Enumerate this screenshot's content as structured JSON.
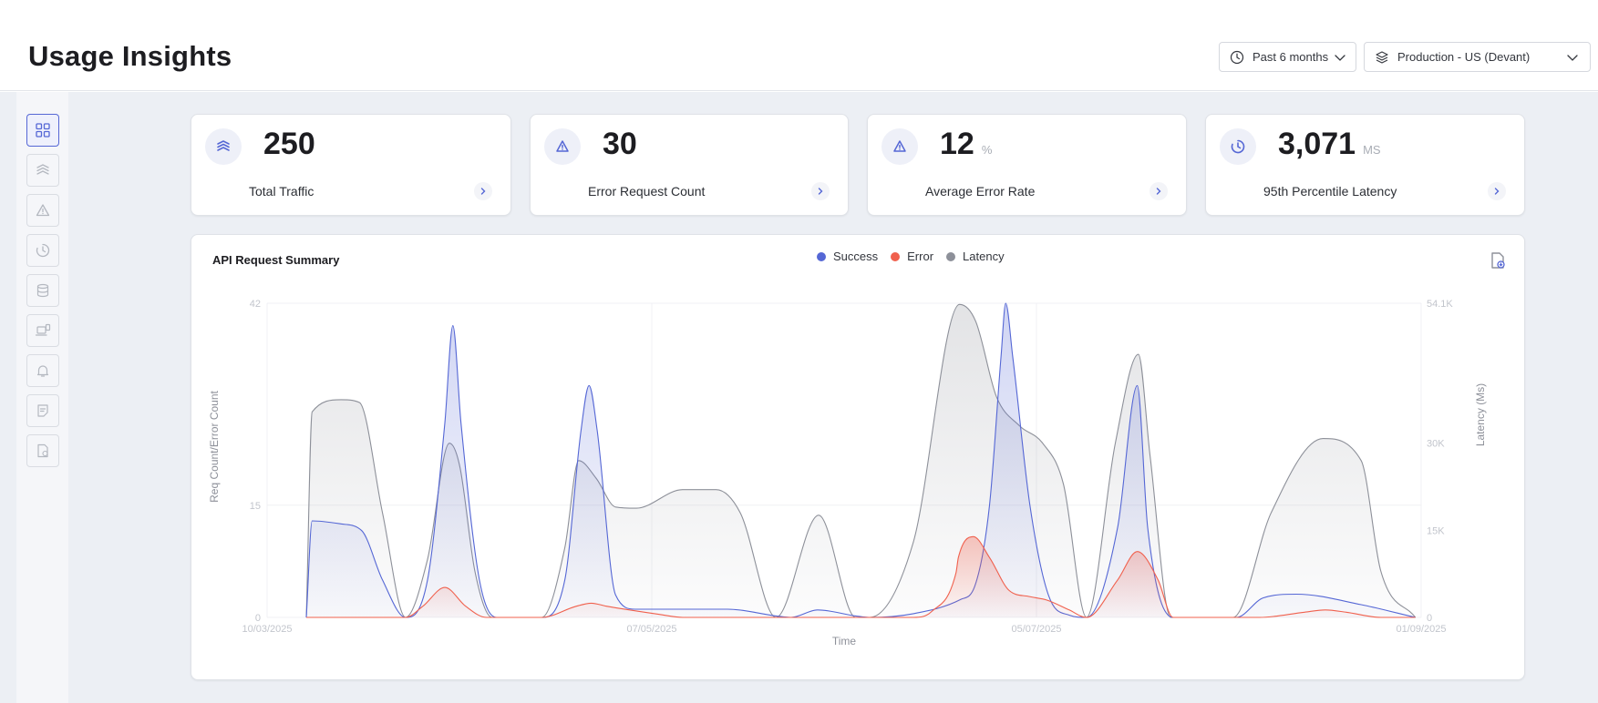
{
  "header": {
    "title": "Usage Insights",
    "time_range": "Past 6 months",
    "environment": "Production - US (Devant)"
  },
  "sidebar": {
    "items": [
      {
        "name": "overview",
        "icon": "grid-icon",
        "active": true
      },
      {
        "name": "traffic",
        "icon": "layers-icon",
        "active": false
      },
      {
        "name": "errors",
        "icon": "warning-icon",
        "active": false
      },
      {
        "name": "latency",
        "icon": "pie-clock-icon",
        "active": false
      },
      {
        "name": "database",
        "icon": "database-icon",
        "active": false
      },
      {
        "name": "devices",
        "icon": "devices-icon",
        "active": false
      },
      {
        "name": "alerts",
        "icon": "bell-icon",
        "active": false
      },
      {
        "name": "reports",
        "icon": "document-icon",
        "active": false
      },
      {
        "name": "export",
        "icon": "export-file-icon",
        "active": false
      }
    ]
  },
  "cards": [
    {
      "value": "250",
      "unit": "",
      "label": "Total Traffic",
      "icon": "layers-icon"
    },
    {
      "value": "30",
      "unit": "",
      "label": "Error Request Count",
      "icon": "warning-icon"
    },
    {
      "value": "12",
      "unit": "%",
      "label": "Average Error Rate",
      "icon": "warning-icon"
    },
    {
      "value": "3,071",
      "unit": "MS",
      "label": "95th Percentile Latency",
      "icon": "pie-clock-icon"
    }
  ],
  "chart": {
    "title": "API Request Summary"
  },
  "colors": {
    "success": "#5567d5",
    "error": "#f0604d",
    "latency": "#8d9099",
    "accent": "#5567d5"
  },
  "chart_data": {
    "type": "area",
    "title": "API Request Summary",
    "xlabel": "Time",
    "ylabel": "Req Count/Error Count",
    "y2label": "Latency (Ms)",
    "x_ticks": [
      "10/03/2025",
      "07/05/2025",
      "05/07/2025",
      "01/09/2025"
    ],
    "y_ticks": [
      "0",
      "15",
      "42"
    ],
    "y2_ticks": [
      "0",
      "15K",
      "30K",
      "54.1K"
    ],
    "ylim": [
      0,
      42
    ],
    "y2lim": [
      0,
      54100
    ],
    "legend": [
      "Success",
      "Error",
      "Latency"
    ],
    "legend_position": "top-center",
    "grid": true,
    "series": [
      {
        "name": "Success",
        "axis": "left",
        "color": "#5567d5",
        "points": [
          [
            0.034,
            0
          ],
          [
            0.039,
            12.9
          ],
          [
            0.064,
            12.5
          ],
          [
            0.082,
            11.6
          ],
          [
            0.1,
            5
          ],
          [
            0.12,
            0
          ],
          [
            0.139,
            5
          ],
          [
            0.154,
            26
          ],
          [
            0.161,
            39
          ],
          [
            0.168,
            26
          ],
          [
            0.184,
            5
          ],
          [
            0.199,
            0
          ],
          [
            0.238,
            0
          ],
          [
            0.258,
            5
          ],
          [
            0.272,
            25
          ],
          [
            0.279,
            31
          ],
          [
            0.286,
            25
          ],
          [
            0.302,
            3
          ],
          [
            0.319,
            1.1
          ],
          [
            0.399,
            1.1
          ],
          [
            0.441,
            0.2
          ],
          [
            0.454,
            0
          ],
          [
            0.477,
            1
          ],
          [
            0.51,
            0.2
          ],
          [
            0.522,
            0
          ],
          [
            0.56,
            0.5
          ],
          [
            0.601,
            2.4
          ],
          [
            0.613,
            4.1
          ],
          [
            0.626,
            15
          ],
          [
            0.636,
            35
          ],
          [
            0.64,
            42
          ],
          [
            0.646,
            35
          ],
          [
            0.661,
            15
          ],
          [
            0.677,
            3
          ],
          [
            0.695,
            0.3
          ],
          [
            0.71,
            0
          ],
          [
            0.737,
            12
          ],
          [
            0.754,
            31
          ],
          [
            0.763,
            12
          ],
          [
            0.785,
            0
          ],
          [
            0.84,
            0
          ],
          [
            0.863,
            2.6
          ],
          [
            0.892,
            3.1
          ],
          [
            0.948,
            1.7
          ],
          [
            0.995,
            0
          ]
        ]
      },
      {
        "name": "Error",
        "axis": "left",
        "color": "#f0604d",
        "points": [
          [
            0.034,
            0
          ],
          [
            0.12,
            0
          ],
          [
            0.135,
            1.5
          ],
          [
            0.154,
            4
          ],
          [
            0.172,
            1.5
          ],
          [
            0.19,
            0
          ],
          [
            0.238,
            0
          ],
          [
            0.268,
            1.5
          ],
          [
            0.281,
            1.9
          ],
          [
            0.294,
            1.5
          ],
          [
            0.34,
            0.4
          ],
          [
            0.36,
            0
          ],
          [
            0.56,
            0
          ],
          [
            0.576,
            0.8
          ],
          [
            0.597,
            6
          ],
          [
            0.599,
            8
          ],
          [
            0.612,
            10.8
          ],
          [
            0.626,
            8
          ],
          [
            0.643,
            3.6
          ],
          [
            0.66,
            2.8
          ],
          [
            0.676,
            2.3
          ],
          [
            0.695,
            1
          ],
          [
            0.71,
            0
          ],
          [
            0.737,
            5
          ],
          [
            0.754,
            8.8
          ],
          [
            0.772,
            5
          ],
          [
            0.785,
            0
          ],
          [
            0.86,
            0
          ],
          [
            0.899,
            0.7
          ],
          [
            0.917,
            1
          ],
          [
            0.935,
            0.7
          ],
          [
            0.965,
            0
          ],
          [
            0.995,
            0
          ]
        ]
      },
      {
        "name": "Latency",
        "axis": "right",
        "color": "#8d9099",
        "points": [
          [
            0.034,
            0
          ],
          [
            0.039,
            35400
          ],
          [
            0.064,
            37500
          ],
          [
            0.08,
            37000
          ],
          [
            0.1,
            18000
          ],
          [
            0.12,
            0
          ],
          [
            0.139,
            10000
          ],
          [
            0.158,
            30000
          ],
          [
            0.167,
            26000
          ],
          [
            0.18,
            8000
          ],
          [
            0.195,
            0
          ],
          [
            0.238,
            0
          ],
          [
            0.258,
            12000
          ],
          [
            0.27,
            27000
          ],
          [
            0.285,
            24000
          ],
          [
            0.302,
            19000
          ],
          [
            0.32,
            18800
          ],
          [
            0.36,
            22000
          ],
          [
            0.389,
            22000
          ],
          [
            0.41,
            18000
          ],
          [
            0.441,
            0
          ],
          [
            0.478,
            17600
          ],
          [
            0.51,
            0
          ],
          [
            0.522,
            0
          ],
          [
            0.56,
            13000
          ],
          [
            0.6,
            53900
          ],
          [
            0.614,
            51000
          ],
          [
            0.632,
            38000
          ],
          [
            0.652,
            33000
          ],
          [
            0.672,
            30000
          ],
          [
            0.69,
            23000
          ],
          [
            0.71,
            0
          ],
          [
            0.735,
            30000
          ],
          [
            0.755,
            45300
          ],
          [
            0.765,
            28000
          ],
          [
            0.783,
            0
          ],
          [
            0.837,
            0
          ],
          [
            0.87,
            18000
          ],
          [
            0.915,
            30800
          ],
          [
            0.948,
            27000
          ],
          [
            0.965,
            8000
          ],
          [
            0.995,
            0
          ]
        ]
      }
    ]
  }
}
